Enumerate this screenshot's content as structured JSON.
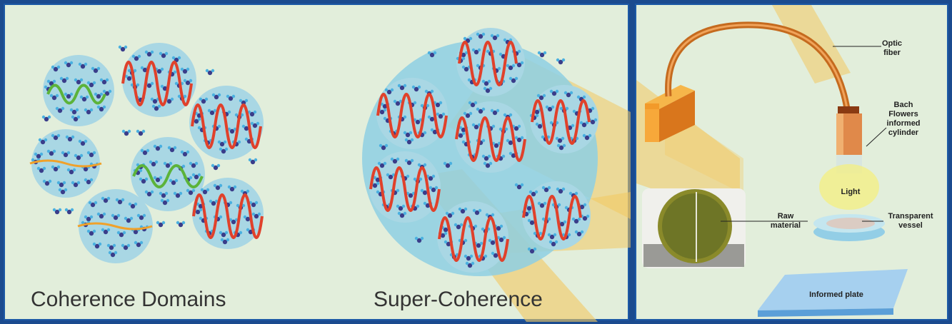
{
  "left": {
    "label_coherence_domains": "Coherence Domains",
    "label_super_coherence": "Super-Coherence"
  },
  "right": {
    "label_optic_fiber": "Optic fiber",
    "label_bach_cylinder": "Bach Flowers informed cylinder",
    "label_light": "Light",
    "label_raw_material": "Raw material",
    "label_transparent_vessel": "Transparent vessel",
    "label_informed_plate": "Informed plate"
  },
  "colors": {
    "background": "#e2eedb",
    "border": "#1d5aa6",
    "bubble": "#a9d7e4",
    "big_bubble": "#8ecfe3",
    "wave_red": "#e0412b",
    "wave_green": "#5cb33a",
    "wave_orange": "#f0a12a",
    "beam": "#f3c860",
    "fiber": "#e08a3a",
    "molecule_dark": "#3a3d8a",
    "molecule_light": "#4ab0e0"
  }
}
